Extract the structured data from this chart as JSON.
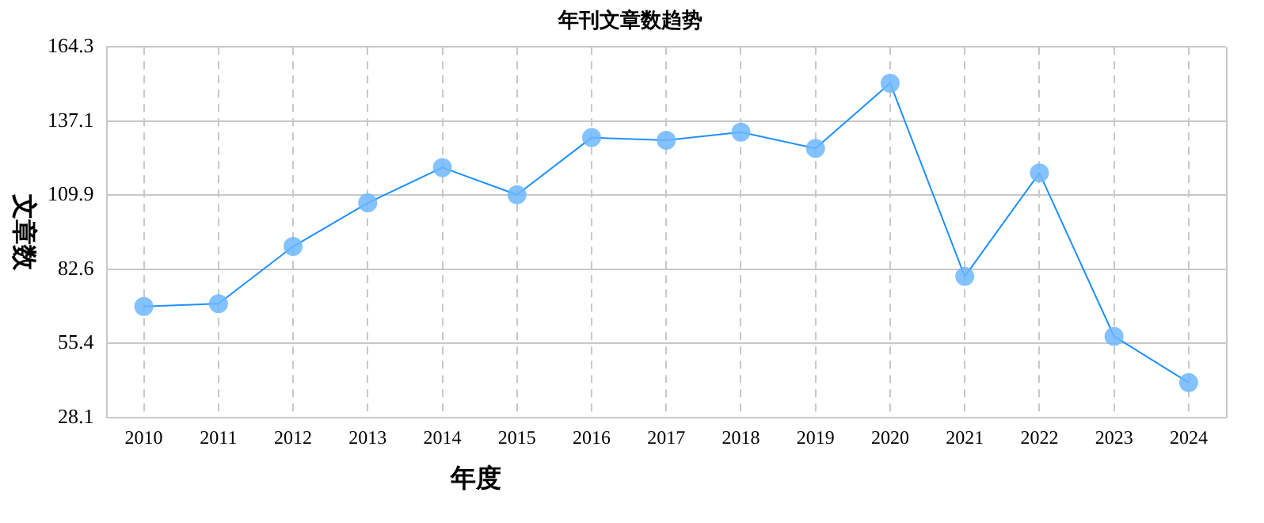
{
  "chart_data": {
    "type": "line",
    "title": "年刊文章数趋势",
    "xlabel": "年度",
    "ylabel": "文章数",
    "categories": [
      "2010",
      "2011",
      "2012",
      "2013",
      "2014",
      "2015",
      "2016",
      "2017",
      "2018",
      "2019",
      "2020",
      "2021",
      "2022",
      "2023",
      "2024"
    ],
    "series": [
      {
        "color": "#1e90ff",
        "values": [
          69,
          70,
          91,
          107,
          120,
          110,
          131,
          130,
          133,
          127,
          151,
          80,
          118,
          58,
          41
        ]
      }
    ],
    "ylim": [
      28.1,
      164.3
    ],
    "yticks": [
      28.1,
      55.4,
      82.6,
      109.9,
      137.1,
      164.3
    ],
    "grid": true,
    "legend": false,
    "marker": "circle",
    "line_style": "solid"
  }
}
